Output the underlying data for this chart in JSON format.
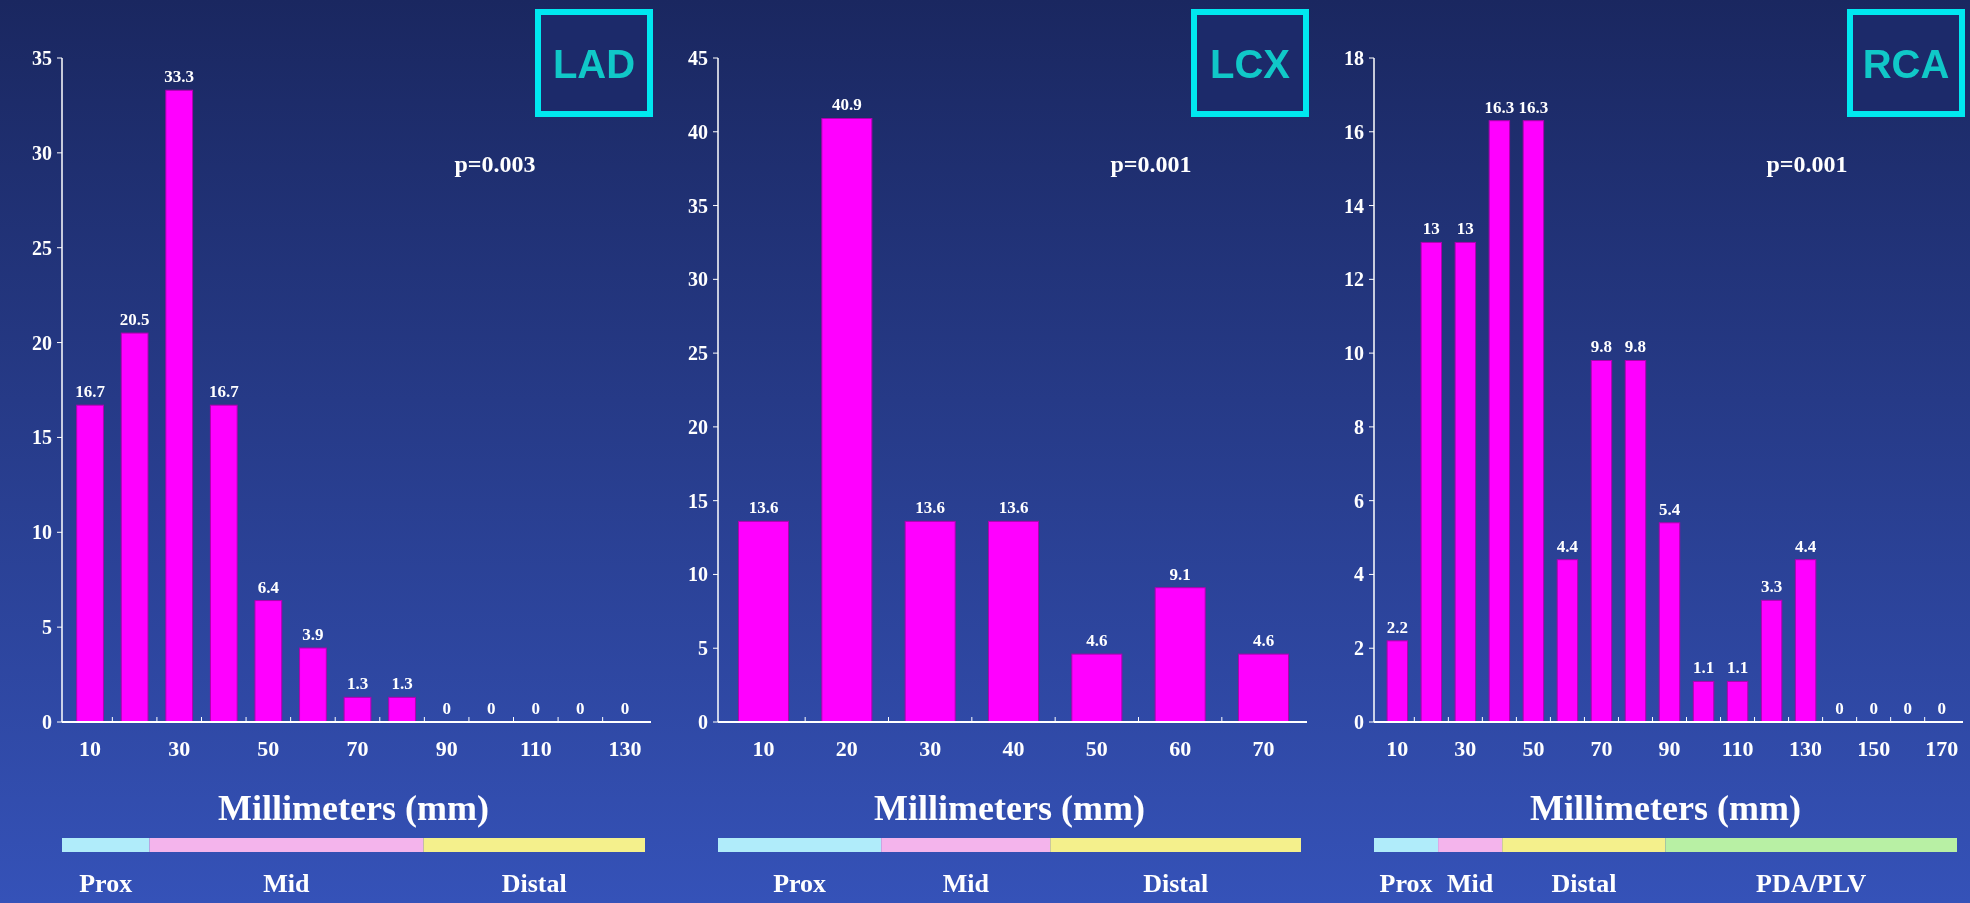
{
  "chart_data": [
    {
      "type": "bar",
      "title": "LAD",
      "xlabel": "Millimeters (mm)",
      "categories": [
        "10",
        null,
        "30",
        null,
        "50",
        null,
        "70",
        null,
        "90",
        null,
        "110",
        null,
        "130"
      ],
      "values": [
        16.7,
        20.5,
        33.3,
        16.7,
        6.4,
        3.9,
        1.3,
        1.3,
        0,
        0,
        0,
        0,
        0
      ],
      "color": "#ff00ff",
      "ylim": [
        0,
        35
      ],
      "yticks": [
        0,
        5,
        10,
        15,
        20,
        25,
        30,
        35
      ],
      "data_labels": true,
      "grid": false,
      "annotations": [
        "p=0.003",
        "Prox",
        "Mid",
        "Distal"
      ]
    },
    {
      "type": "bar",
      "title": "LCX",
      "xlabel": "Millimeters (mm)",
      "categories": [
        "10",
        "20",
        "30",
        "40",
        "50",
        "60",
        "70"
      ],
      "values": [
        13.6,
        40.9,
        13.6,
        13.6,
        4.6,
        9.1,
        4.6
      ],
      "color": "#ff00ff",
      "ylim": [
        0,
        45
      ],
      "yticks": [
        0,
        5,
        10,
        15,
        20,
        25,
        30,
        35,
        40,
        45
      ],
      "data_labels": true,
      "grid": false,
      "annotations": [
        "p=0.001",
        "Prox",
        "Mid",
        "Distal"
      ]
    },
    {
      "type": "bar",
      "title": "RCA",
      "xlabel": "Millimeters (mm)",
      "categories": [
        "10",
        null,
        "30",
        null,
        "50",
        null,
        "70",
        null,
        "90",
        null,
        "110",
        null,
        "130",
        null,
        "150",
        null,
        "170"
      ],
      "values": [
        2.2,
        13,
        13,
        16.3,
        16.3,
        4.4,
        9.8,
        9.8,
        5.4,
        1.1,
        1.1,
        3.3,
        4.4,
        0,
        0,
        0,
        0
      ],
      "color": "#ff00ff",
      "ylim": [
        0,
        18
      ],
      "yticks": [
        0,
        2,
        4,
        6,
        8,
        10,
        12,
        14,
        16,
        18
      ],
      "data_labels": true,
      "grid": false,
      "annotations": [
        "p=0.001",
        "Prox",
        "Mid",
        "Distal",
        "PDA/PLV"
      ]
    }
  ]
}
